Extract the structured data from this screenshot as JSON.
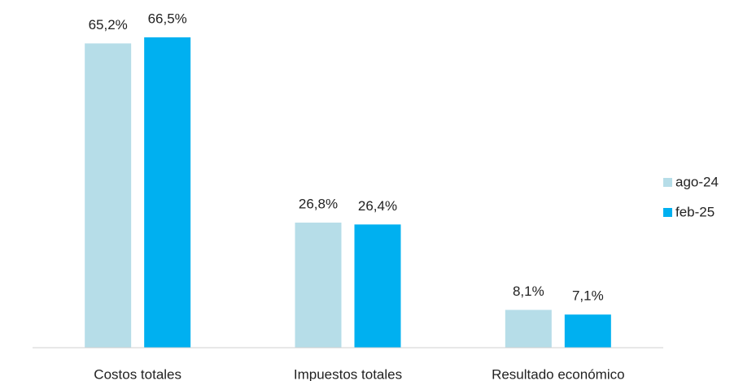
{
  "chart_data": {
    "type": "bar",
    "categories": [
      "Costos totales",
      "Impuestos totales",
      "Resultado económico"
    ],
    "series": [
      {
        "name": "ago-24",
        "color": "#b6dde8",
        "values": [
          65.2,
          26.8,
          8.1
        ],
        "value_labels": [
          "65,2%",
          "26,8%",
          "8,1%"
        ]
      },
      {
        "name": "feb-25",
        "color": "#00b0f0",
        "values": [
          66.5,
          26.4,
          7.1
        ],
        "value_labels": [
          "66,5%",
          "26,4%",
          "7,1%"
        ]
      }
    ],
    "legend": "right"
  }
}
